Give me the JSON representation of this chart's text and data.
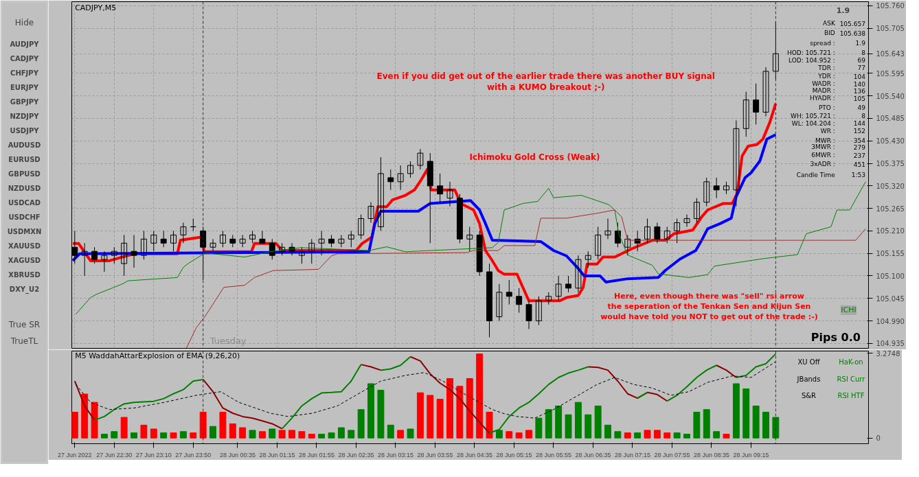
{
  "chart_data": [
    {
      "type": "candlestick",
      "title": "CADJPY,M5",
      "x": [
        "2022-06-27T21:50",
        "2022-06-27T22:00",
        "2022-06-27T22:10",
        "2022-06-27T22:20",
        "2022-06-27T22:30",
        "2022-06-27T22:40",
        "2022-06-27T22:50",
        "2022-06-27T23:00",
        "2022-06-27T23:10",
        "2022-06-27T23:20",
        "2022-06-27T23:30",
        "2022-06-27T23:40",
        "2022-06-27T23:50",
        "2022-06-28T00:00",
        "2022-06-28T00:10",
        "2022-06-28T00:20",
        "2022-06-28T00:30",
        "2022-06-28T00:40",
        "2022-06-28T00:50",
        "2022-06-28T01:00",
        "2022-06-28T01:10",
        "2022-06-28T01:20",
        "2022-06-28T01:30",
        "2022-06-28T01:40",
        "2022-06-28T01:50",
        "2022-06-28T02:00",
        "2022-06-28T02:10",
        "2022-06-28T02:20",
        "2022-06-28T02:30",
        "2022-06-28T02:40",
        "2022-06-28T02:50",
        "2022-06-28T03:00",
        "2022-06-28T03:10",
        "2022-06-28T03:20",
        "2022-06-28T03:30",
        "2022-06-28T03:40",
        "2022-06-28T03:50",
        "2022-06-28T04:00",
        "2022-06-28T04:10",
        "2022-06-28T04:20",
        "2022-06-28T04:30",
        "2022-06-28T04:40",
        "2022-06-28T04:50",
        "2022-06-28T05:00",
        "2022-06-28T05:10",
        "2022-06-28T05:20",
        "2022-06-28T05:30",
        "2022-06-28T05:40",
        "2022-06-28T05:50",
        "2022-06-28T06:00",
        "2022-06-28T06:10",
        "2022-06-28T06:20",
        "2022-06-28T06:30",
        "2022-06-28T06:40",
        "2022-06-28T06:50",
        "2022-06-28T07:00",
        "2022-06-28T07:10",
        "2022-06-28T07:20",
        "2022-06-28T07:30",
        "2022-06-28T07:40",
        "2022-06-28T07:50",
        "2022-06-28T08:00",
        "2022-06-28T08:10",
        "2022-06-28T08:20",
        "2022-06-28T08:30",
        "2022-06-28T08:40",
        "2022-06-28T08:50",
        "2022-06-28T09:00",
        "2022-06-28T09:10",
        "2022-06-28T09:20",
        "2022-06-28T09:30",
        "2022-06-28T09:40"
      ],
      "ohlc": [
        [
          105.17,
          105.21,
          105.13,
          105.15
        ],
        [
          105.15,
          105.18,
          105.1,
          105.16
        ],
        [
          105.16,
          105.17,
          105.13,
          105.14
        ],
        [
          105.14,
          105.16,
          105.11,
          105.15
        ],
        [
          105.15,
          105.17,
          105.13,
          105.16
        ],
        [
          105.13,
          105.2,
          105.1,
          105.18
        ],
        [
          105.16,
          105.2,
          105.12,
          105.15
        ],
        [
          105.15,
          105.21,
          105.14,
          105.19
        ],
        [
          105.18,
          105.21,
          105.16,
          105.2
        ],
        [
          105.19,
          105.21,
          105.17,
          105.18
        ],
        [
          105.18,
          105.21,
          105.16,
          105.2
        ],
        [
          105.2,
          105.23,
          105.18,
          105.22
        ],
        [
          105.22,
          105.24,
          105.21,
          105.22
        ],
        [
          105.21,
          105.22,
          105.09,
          105.17
        ],
        [
          105.17,
          105.19,
          105.16,
          105.18
        ],
        [
          105.18,
          105.21,
          105.17,
          105.2
        ],
        [
          105.19,
          105.2,
          105.17,
          105.18
        ],
        [
          105.18,
          105.2,
          105.17,
          105.19
        ],
        [
          105.19,
          105.21,
          105.18,
          105.2
        ],
        [
          105.19,
          105.21,
          105.18,
          105.18
        ],
        [
          105.18,
          105.19,
          105.14,
          105.15
        ],
        [
          105.16,
          105.18,
          105.15,
          105.17
        ],
        [
          105.17,
          105.18,
          105.15,
          105.16
        ],
        [
          105.15,
          105.17,
          105.13,
          105.16
        ],
        [
          105.16,
          105.19,
          105.13,
          105.18
        ],
        [
          105.18,
          105.21,
          105.15,
          105.19
        ],
        [
          105.19,
          105.2,
          105.17,
          105.18
        ],
        [
          105.18,
          105.2,
          105.17,
          105.19
        ],
        [
          105.19,
          105.21,
          105.17,
          105.2
        ],
        [
          105.2,
          105.25,
          105.19,
          105.24
        ],
        [
          105.24,
          105.28,
          105.23,
          105.27
        ],
        [
          105.22,
          105.39,
          105.21,
          105.35
        ],
        [
          105.34,
          105.36,
          105.31,
          105.33
        ],
        [
          105.33,
          105.37,
          105.31,
          105.35
        ],
        [
          105.35,
          105.38,
          105.34,
          105.37
        ],
        [
          105.37,
          105.41,
          105.36,
          105.4
        ],
        [
          105.38,
          105.4,
          105.18,
          105.32
        ],
        [
          105.32,
          105.35,
          105.28,
          105.3
        ],
        [
          105.29,
          105.33,
          105.27,
          105.31
        ],
        [
          105.29,
          105.3,
          105.18,
          105.19
        ],
        [
          105.19,
          105.22,
          105.16,
          105.2
        ],
        [
          105.2,
          105.21,
          105.1,
          105.11
        ],
        [
          105.11,
          105.13,
          104.95,
          104.99
        ],
        [
          105.0,
          105.08,
          104.99,
          105.06
        ],
        [
          105.06,
          105.09,
          105.03,
          105.05
        ],
        [
          105.05,
          105.07,
          105.01,
          105.03
        ],
        [
          105.03,
          105.04,
          104.97,
          104.99
        ],
        [
          104.99,
          105.05,
          104.98,
          105.04
        ],
        [
          105.04,
          105.06,
          105.03,
          105.05
        ],
        [
          105.05,
          105.1,
          105.04,
          105.08
        ],
        [
          105.08,
          105.1,
          105.06,
          105.07
        ],
        [
          105.07,
          105.15,
          105.06,
          105.14
        ],
        [
          105.14,
          105.16,
          105.12,
          105.15
        ],
        [
          105.15,
          105.22,
          105.14,
          105.2
        ],
        [
          105.2,
          105.24,
          105.19,
          105.21
        ],
        [
          105.21,
          105.23,
          105.17,
          105.18
        ],
        [
          105.17,
          105.2,
          105.15,
          105.19
        ],
        [
          105.19,
          105.21,
          105.16,
          105.18
        ],
        [
          105.19,
          105.24,
          105.18,
          105.22
        ],
        [
          105.22,
          105.23,
          105.18,
          105.19
        ],
        [
          105.19,
          105.22,
          105.18,
          105.21
        ],
        [
          105.21,
          105.24,
          105.18,
          105.23
        ],
        [
          105.23,
          105.25,
          105.22,
          105.24
        ],
        [
          105.24,
          105.29,
          105.23,
          105.28
        ],
        [
          105.28,
          105.34,
          105.27,
          105.33
        ],
        [
          105.32,
          105.34,
          105.29,
          105.31
        ],
        [
          105.31,
          105.33,
          105.3,
          105.32
        ],
        [
          105.31,
          105.48,
          105.27,
          105.46
        ],
        [
          105.46,
          105.55,
          105.44,
          105.53
        ],
        [
          105.53,
          105.57,
          105.47,
          105.5
        ],
        [
          105.5,
          105.61,
          105.49,
          105.6
        ],
        [
          105.6,
          105.721,
          105.58,
          105.643
        ]
      ],
      "series": [
        {
          "type": "line",
          "color": "#ff0000",
          "x": [
            "2022-06-27T21:48",
            "2022-06-27T21:54",
            "2022-06-27T22:06",
            "2022-06-27T22:25",
            "2022-06-27T22:50",
            "2022-06-27T23:34",
            "2022-06-27T23:37",
            "2022-06-27T23:59",
            "2022-06-28T00:01",
            "2022-06-28T00:49",
            "2022-06-28T00:52",
            "2022-06-28T01:14",
            "2022-06-28T01:20",
            "2022-06-28T02:35",
            "2022-06-28T02:41",
            "2022-06-28T02:51",
            "2022-06-28T02:57",
            "2022-06-28T03:06",
            "2022-06-28T03:12",
            "2022-06-28T03:25",
            "2022-06-28T03:34",
            "2022-06-28T03:41",
            "2022-06-28T03:47",
            "2022-06-28T03:51",
            "2022-06-28T04:15",
            "2022-06-28T04:21",
            "2022-06-28T04:34",
            "2022-06-28T04:40",
            "2022-06-28T04:46",
            "2022-06-28T04:53",
            "2022-06-28T04:59",
            "2022-06-28T05:05",
            "2022-06-28T05:18",
            "2022-06-28T05:30",
            "2022-06-28T06:01",
            "2022-06-28T06:08",
            "2022-06-28T06:20",
            "2022-06-28T06:25",
            "2022-06-28T06:29",
            "2022-06-28T06:39",
            "2022-06-28T06:45",
            "2022-06-28T06:57",
            "2022-06-28T07:13",
            "2022-06-28T07:23",
            "2022-06-28T07:35",
            "2022-06-28T07:48",
            "2022-06-28T07:57",
            "2022-06-28T08:16",
            "2022-06-28T08:25",
            "2022-06-28T08:31",
            "2022-06-28T08:47",
            "2022-06-28T08:56",
            "2022-06-28T09:01",
            "2022-06-28T09:06",
            "2022-06-28T09:12",
            "2022-06-28T09:21",
            "2022-06-28T09:27",
            "2022-06-28T09:34",
            "2022-06-28T09:40"
          ],
          "values": [
            105.179,
            105.179,
            105.137,
            105.137,
            105.154,
            105.154,
            105.187,
            105.195,
            105.159,
            105.159,
            105.179,
            105.179,
            105.162,
            105.162,
            105.179,
            105.195,
            105.269,
            105.269,
            105.286,
            105.297,
            105.31,
            105.335,
            105.36,
            105.31,
            105.31,
            105.277,
            105.261,
            105.228,
            105.162,
            105.137,
            105.113,
            105.104,
            105.104,
            105.039,
            105.039,
            105.047,
            105.052,
            105.072,
            105.129,
            105.129,
            105.146,
            105.146,
            105.165,
            105.175,
            105.187,
            105.187,
            105.203,
            105.212,
            105.244,
            105.261,
            105.277,
            105.277,
            105.302,
            105.393,
            105.417,
            105.421,
            105.434,
            105.475,
            105.521
          ]
        },
        {
          "type": "line",
          "color": "#0000ff",
          "x": [
            "2022-06-27T21:48",
            "2022-06-27T21:55",
            "2022-06-27T23:53",
            "2022-06-28T02:48",
            "2022-06-28T02:54",
            "2022-06-28T03:00",
            "2022-06-28T03:38",
            "2022-06-28T03:50",
            "2022-06-28T04:31",
            "2022-06-28T04:40",
            "2022-06-28T04:46",
            "2022-06-28T04:53",
            "2022-06-28T05:42",
            "2022-06-28T05:55",
            "2022-06-28T06:08",
            "2022-06-28T06:20",
            "2022-06-28T06:26",
            "2022-06-28T06:42",
            "2022-06-28T06:48",
            "2022-06-28T07:10",
            "2022-06-28T07:41",
            "2022-06-28T07:48",
            "2022-06-28T08:03",
            "2022-06-28T08:19",
            "2022-06-28T08:25",
            "2022-06-28T08:31",
            "2022-06-28T08:44",
            "2022-06-28T08:55",
            "2022-06-28T09:00",
            "2022-06-28T09:09",
            "2022-06-28T09:15",
            "2022-06-28T09:24",
            "2022-06-28T09:31",
            "2022-06-28T09:40"
          ],
          "values": [
            105.137,
            105.154,
            105.156,
            105.159,
            105.228,
            105.258,
            105.258,
            105.277,
            105.284,
            105.261,
            105.228,
            105.187,
            105.184,
            105.162,
            105.149,
            105.118,
            105.1,
            105.1,
            105.085,
            105.093,
            105.096,
            105.113,
            105.141,
            105.162,
            105.187,
            105.215,
            105.228,
            105.241,
            105.294,
            105.34,
            105.352,
            105.381,
            105.434,
            105.445
          ]
        },
        {
          "type": "line",
          "color": "#008000",
          "x": [
            "2022-06-27T21:51",
            "2022-06-27T22:06",
            "2022-06-27T22:12",
            "2022-06-27T22:38",
            "2022-06-27T22:44",
            "2022-06-27T23:34",
            "2022-06-27T23:40",
            "2022-06-27T23:46",
            "2022-06-28T00:02",
            "2022-06-28T00:42",
            "2022-06-28T01:08",
            "2022-06-28T01:39",
            "2022-06-28T02:48",
            "2022-06-28T03:06",
            "2022-06-28T03:25",
            "2022-06-28T04:53",
            "2022-06-28T04:59",
            "2022-06-28T05:05",
            "2022-06-28T05:24",
            "2022-06-28T05:39",
            "2022-06-28T05:50",
            "2022-06-28T05:55",
            "2022-06-28T06:23",
            "2022-06-28T06:51",
            "2022-06-28T06:57",
            "2022-06-28T07:01",
            "2022-06-28T07:10",
            "2022-06-28T07:35",
            "2022-06-28T07:41",
            "2022-06-28T08:12",
            "2022-06-28T08:31",
            "2022-06-28T08:38",
            "2022-06-28T09:27",
            "2022-06-28T10:02",
            "2022-06-28T10:11",
            "2022-06-28T10:36",
            "2022-06-28T10:42",
            "2022-06-28T10:55",
            "2022-06-28T11:11"
          ],
          "values": [
            105.006,
            105.047,
            105.055,
            105.08,
            105.088,
            105.096,
            105.121,
            105.132,
            105.156,
            105.146,
            105.159,
            105.169,
            105.162,
            105.171,
            105.159,
            105.169,
            105.182,
            105.261,
            105.277,
            105.282,
            105.314,
            105.291,
            105.297,
            105.274,
            105.261,
            105.203,
            105.151,
            105.126,
            105.105,
            105.096,
            105.103,
            105.124,
            105.142,
            105.152,
            105.203,
            105.22,
            105.261,
            105.261,
            105.33
          ]
        },
        {
          "type": "line",
          "color": "#a52a2a",
          "x": [
            "2022-06-27T23:43",
            "2022-06-27T23:53",
            "2022-06-28T00:02",
            "2022-06-28T00:21",
            "2022-06-28T00:42",
            "2022-06-28T00:52",
            "2022-06-28T01:11",
            "2022-06-28T01:57",
            "2022-06-28T02:10",
            "2022-06-28T02:16",
            "2022-06-28T04:27",
            "2022-06-28T04:34",
            "2022-06-28T04:59",
            "2022-06-28T05:05",
            "2022-06-28T05:36",
            "2022-06-28T05:42",
            "2022-06-28T06:08",
            "2022-06-28T06:39",
            "2022-06-28T06:57",
            "2022-06-28T07:04",
            "2022-06-28T07:10",
            "2022-06-28T11:01",
            "2022-06-28T11:11"
          ],
          "values": [
            104.923,
            104.973,
            105.001,
            105.072,
            105.077,
            105.096,
            105.113,
            105.116,
            105.149,
            105.154,
            105.157,
            105.162,
            105.162,
            105.174,
            105.174,
            105.241,
            105.241,
            105.253,
            105.261,
            105.244,
            105.187,
            105.187,
            105.215
          ]
        }
      ],
      "xlim": [
        "2022-06-27T21:47",
        "2022-06-28T11:14"
      ],
      "ylim": [
        104.923,
        105.77
      ],
      "xticks": [
        {
          "value": "2022-06-27T21:50",
          "label": null
        },
        {
          "value": "2022-06-27T22:30",
          "label": null
        },
        {
          "value": "2022-06-27T23:10",
          "label": null
        },
        {
          "value": "2022-06-27T23:50",
          "label": null
        },
        {
          "value": "2022-06-28T00:35",
          "label": null
        },
        {
          "value": "2022-06-28T01:15",
          "label": null
        },
        {
          "value": "2022-06-28T01:55",
          "label": null
        },
        {
          "value": "2022-06-28T02:35",
          "label": null
        },
        {
          "value": "2022-06-28T03:15",
          "label": null
        },
        {
          "value": "2022-06-28T03:55",
          "label": null
        },
        {
          "value": "2022-06-28T04:35",
          "label": null
        },
        {
          "value": "2022-06-28T05:15",
          "label": null
        },
        {
          "value": "2022-06-28T05:55",
          "label": null
        },
        {
          "value": "2022-06-28T06:35",
          "label": null
        },
        {
          "value": "2022-06-28T07:15",
          "label": null
        },
        {
          "value": "2022-06-28T07:55",
          "label": null
        },
        {
          "value": "2022-06-28T08:35",
          "label": null
        },
        {
          "value": "2022-06-28T09:15",
          "label": null
        }
      ],
      "yticks": [
        {
          "value": 104.935,
          "label": "104.935"
        },
        {
          "value": 104.99,
          "label": "104.990"
        },
        {
          "value": 105.045,
          "label": "105.045"
        },
        {
          "value": 105.1,
          "label": "105.100"
        },
        {
          "value": 105.155,
          "label": "105.155"
        },
        {
          "value": 105.21,
          "label": "105.210"
        },
        {
          "value": 105.265,
          "label": "105.265"
        },
        {
          "value": 105.32,
          "label": "105.320"
        },
        {
          "value": 105.375,
          "label": "105.375"
        },
        {
          "value": 105.43,
          "label": "105.430"
        },
        {
          "value": 105.485,
          "label": "105.485"
        },
        {
          "value": 105.54,
          "label": "105.540"
        },
        {
          "value": 105.595,
          "label": "105.595"
        },
        {
          "value": 105.643,
          "label": "105.643"
        },
        {
          "value": 105.705,
          "label": "105.705"
        },
        {
          "value": 105.76,
          "label": "105.760"
        }
      ],
      "tick_labels": "y",
      "grid": true,
      "ref_lines": [
        {
          "axis": "x",
          "value": "2022-06-28T00:00",
          "label": "Tuesday",
          "line_style": "dashed"
        },
        {
          "axis": "x",
          "value": "2022-06-28T09:40",
          "line_style": "dashed"
        }
      ],
      "annotations": [
        "Even if you did get out of the earlier trade there was another BUY signal\nwith a KUMO breakout ;-)",
        "Ichimoku Gold Cross (Weak)",
        "Here, even though there was \"sell\" rsi arrow\nthe seperation of the Tenkan Sen and Kijun Sen\nwould have told you NOT to get out of the trade :-)",
        "Pips 0.0",
        "ICHI",
        "1.9",
        "ASK",
        "105.657",
        "BID",
        "105.638",
        "spread :",
        "1.9",
        "HOD: 105.721 :",
        "8",
        "LOD: 104.952 :",
        "69",
        "TDR :",
        "77",
        "YDR :",
        "104",
        "WADR :",
        "140",
        "MADR :",
        "136",
        "HYADR :",
        "105",
        "PTO :",
        "49",
        "WH: 105.721 :",
        "8",
        "WL: 104.204 :",
        "144",
        "WR :",
        "152",
        "MWR :",
        "354",
        "3MWR :",
        "279",
        "6MWR :",
        "237",
        "3xADR :",
        "451",
        "Candle Time",
        "1:53"
      ]
    },
    {
      "type": "bar",
      "title": "M5 WaddahAttarExplosion of EMA (9,26,20)",
      "x": [
        "2022-06-27T21:50",
        "2022-06-27T22:00",
        "2022-06-27T22:10",
        "2022-06-27T22:20",
        "2022-06-27T22:30",
        "2022-06-27T22:40",
        "2022-06-27T22:50",
        "2022-06-27T23:00",
        "2022-06-27T23:10",
        "2022-06-27T23:20",
        "2022-06-27T23:30",
        "2022-06-27T23:40",
        "2022-06-27T23:50",
        "2022-06-28T00:00",
        "2022-06-28T00:10",
        "2022-06-28T00:20",
        "2022-06-28T00:30",
        "2022-06-28T00:40",
        "2022-06-28T00:50",
        "2022-06-28T01:00",
        "2022-06-28T01:10",
        "2022-06-28T01:20",
        "2022-06-28T01:30",
        "2022-06-28T01:40",
        "2022-06-28T01:50",
        "2022-06-28T02:00",
        "2022-06-28T02:10",
        "2022-06-28T02:20",
        "2022-06-28T02:30",
        "2022-06-28T02:40",
        "2022-06-28T02:50",
        "2022-06-28T03:00",
        "2022-06-28T03:10",
        "2022-06-28T03:20",
        "2022-06-28T03:30",
        "2022-06-28T03:40",
        "2022-06-28T03:50",
        "2022-06-28T04:00",
        "2022-06-28T04:10",
        "2022-06-28T04:20",
        "2022-06-28T04:30",
        "2022-06-28T04:40",
        "2022-06-28T04:50",
        "2022-06-28T05:00",
        "2022-06-28T05:10",
        "2022-06-28T05:20",
        "2022-06-28T05:30",
        "2022-06-28T05:40",
        "2022-06-28T05:50",
        "2022-06-28T06:00",
        "2022-06-28T06:10",
        "2022-06-28T06:20",
        "2022-06-28T06:30",
        "2022-06-28T06:40",
        "2022-06-28T06:50",
        "2022-06-28T07:00",
        "2022-06-28T07:10",
        "2022-06-28T07:20",
        "2022-06-28T07:30",
        "2022-06-28T07:40",
        "2022-06-28T07:50",
        "2022-06-28T08:00",
        "2022-06-28T08:10",
        "2022-06-28T08:20",
        "2022-06-28T08:30",
        "2022-06-28T08:40",
        "2022-06-28T08:50",
        "2022-06-28T09:00",
        "2022-06-28T09:10",
        "2022-06-28T09:20",
        "2022-06-28T09:30",
        "2022-06-28T09:40"
      ],
      "series": [
        {
          "type": "bar",
          "values": [
            1.0,
            1.7,
            1.38,
            0.15,
            0.25,
            0.8,
            0.2,
            0.5,
            0.35,
            0.2,
            0.2,
            0.25,
            0.2,
            1.0,
            0.45,
            1.0,
            0.55,
            0.4,
            0.3,
            0.25,
            0.35,
            0.3,
            0.3,
            0.25,
            0.15,
            0.15,
            0.2,
            0.4,
            0.3,
            1.1,
            2.1,
            1.85,
            0.5,
            0.3,
            0.35,
            1.75,
            1.65,
            1.5,
            2.3,
            2.0,
            2.3,
            3.25,
            1.0,
            0.3,
            0.25,
            0.2,
            0.3,
            0.77,
            1.1,
            1.24,
            0.9,
            1.38,
            0.9,
            1.24,
            0.5,
            0.25,
            0.2,
            0.2,
            0.3,
            0.3,
            0.2,
            0.2,
            0.15,
            1.0,
            1.1,
            0.25,
            0.15,
            2.1,
            1.9,
            1.24,
            1.0,
            0.8
          ],
          "colors": [
            "#ff0000",
            "#ff0000",
            "#ff0000",
            "#008000",
            "#008000",
            "#ff0000",
            "#008000",
            "#ff0000",
            "#ff0000",
            "#008000",
            "#ff0000",
            "#008000",
            "#ff0000",
            "#ff0000",
            "#008000",
            "#ff0000",
            "#ff0000",
            "#ff0000",
            "#008000",
            "#ff0000",
            "#008000",
            "#ff0000",
            "#ff0000",
            "#ff0000",
            "#ff0000",
            "#008000",
            "#008000",
            "#008000",
            "#008000",
            "#008000",
            "#008000",
            "#008000",
            "#008000",
            "#ff0000",
            "#008000",
            "#ff0000",
            "#ff0000",
            "#ff0000",
            "#ff0000",
            "#ff0000",
            "#ff0000",
            "#ff0000",
            "#ff0000",
            "#008000",
            "#ff0000",
            "#ff0000",
            "#ff0000",
            "#008000",
            "#008000",
            "#008000",
            "#008000",
            "#008000",
            "#008000",
            "#008000",
            "#008000",
            "#008000",
            "#ff0000",
            "#008000",
            "#ff0000",
            "#ff0000",
            "#ff0000",
            "#008000",
            "#008000",
            "#008000",
            "#008000",
            "#008000",
            "#ff0000",
            "#008000",
            "#008000",
            "#008000",
            "#008000",
            "#008000"
          ]
        },
        {
          "type": "line",
          "color": "#8b0000",
          "values": [
            2.2,
            1.24,
            0.69,
            null,
            null,
            null,
            null,
            null,
            null,
            null,
            null,
            null,
            null,
            2.26,
            1.79,
            1.16,
            0.96,
            0.83,
            0.77,
            0.66,
            0.55,
            0.36,
            null,
            null,
            null,
            null,
            null,
            null,
            null,
            2.84,
            2.75,
            2.62,
            null,
            null,
            3.14,
            2.98,
            2.48,
            2.12,
            1.87,
            1.52,
            1.05,
            0.61,
            0.19,
            null,
            null,
            null,
            null,
            null,
            null,
            null,
            null,
            null,
            2.75,
            2.73,
            2.62,
            2.2,
            1.71,
            1.54,
            1.76,
            1.68,
            1.43,
            null,
            null,
            null,
            null,
            2.81,
            2.62,
            2.34,
            null,
            null,
            null,
            null
          ]
        },
        {
          "type": "line",
          "color": "#008000",
          "values": [
            null,
            null,
            0.69,
            0.83,
            1.1,
            1.32,
            1.38,
            1.4,
            1.42,
            1.52,
            1.71,
            1.87,
            2.2,
            2.26,
            null,
            null,
            null,
            null,
            null,
            null,
            null,
            0.36,
            0.77,
            1.24,
            1.52,
            1.74,
            1.76,
            1.79,
            2.2,
            2.84,
            null,
            2.62,
            2.67,
            2.81,
            3.14,
            null,
            null,
            null,
            null,
            null,
            null,
            null,
            0.19,
            0.33,
            0.83,
            1.16,
            1.38,
            1.71,
            2.07,
            2.34,
            2.51,
            2.62,
            2.75,
            null,
            null,
            null,
            null,
            1.54,
            1.76,
            null,
            1.43,
            1.65,
            1.98,
            2.34,
            2.62,
            2.81,
            null,
            2.34,
            2.42,
            2.75,
            2.87,
            3.25
          ]
        },
        {
          "type": "line",
          "color": "#000000",
          "line_style": "dashed",
          "x": [
            "2022-06-27T21:51",
            "2022-06-27T22:06",
            "2022-06-27T22:25",
            "2022-06-27T22:50",
            "2022-06-27T23:21",
            "2022-06-27T23:53",
            "2022-06-28T00:18",
            "2022-06-28T00:36",
            "2022-06-28T01:08",
            "2022-06-28T01:26",
            "2022-06-28T01:51",
            "2022-06-28T02:16",
            "2022-06-28T02:41",
            "2022-06-28T03:00",
            "2022-06-28T03:25",
            "2022-06-28T03:44",
            "2022-06-28T04:03",
            "2022-06-28T04:27",
            "2022-06-28T04:53",
            "2022-06-28T05:05",
            "2022-06-28T05:18",
            "2022-06-28T05:36",
            "2022-06-28T05:55",
            "2022-06-28T06:14",
            "2022-06-28T06:39",
            "2022-06-28T06:57",
            "2022-06-28T07:16",
            "2022-06-28T07:35",
            "2022-06-28T07:54",
            "2022-06-28T08:12",
            "2022-06-28T08:31",
            "2022-06-28T08:56",
            "2022-06-28T09:15",
            "2022-06-28T09:40"
          ],
          "values": [
            2.07,
            1.38,
            1.1,
            1.16,
            1.38,
            1.65,
            1.79,
            1.38,
            0.96,
            0.83,
            0.96,
            1.24,
            1.79,
            2.2,
            2.42,
            2.53,
            2.2,
            1.65,
            1.1,
            0.94,
            0.83,
            0.77,
            1.1,
            1.52,
            2.07,
            2.34,
            2.07,
            1.93,
            1.65,
            1.79,
            2.15,
            2.4,
            2.34,
            2.95
          ]
        }
      ],
      "xlim": [
        "2022-06-27T21:47",
        "2022-06-28T11:14"
      ],
      "ylim": [
        -0.22,
        3.36
      ],
      "xticks": [
        {
          "value": "2022-06-27T21:50",
          "label": "27 Jun 2022"
        },
        {
          "value": "2022-06-27T22:30",
          "label": "27 Jun 22:30"
        },
        {
          "value": "2022-06-27T23:10",
          "label": "27 Jun 23:10"
        },
        {
          "value": "2022-06-27T23:50",
          "label": "27 Jun 23:50"
        },
        {
          "value": "2022-06-28T00:35",
          "label": "28 Jun 00:35"
        },
        {
          "value": "2022-06-28T01:15",
          "label": "28 Jun 01:15"
        },
        {
          "value": "2022-06-28T01:55",
          "label": "28 Jun 01:55"
        },
        {
          "value": "2022-06-28T02:35",
          "label": "28 Jun 02:35"
        },
        {
          "value": "2022-06-28T03:15",
          "label": "28 Jun 03:15"
        },
        {
          "value": "2022-06-28T03:55",
          "label": "28 Jun 03:55"
        },
        {
          "value": "2022-06-28T04:35",
          "label": "28 Jun 04:35"
        },
        {
          "value": "2022-06-28T05:15",
          "label": "28 Jun 05:15"
        },
        {
          "value": "2022-06-28T05:55",
          "label": "28 Jun 05:55"
        },
        {
          "value": "2022-06-28T06:35",
          "label": "28 Jun 06:35"
        },
        {
          "value": "2022-06-28T07:15",
          "label": "28 Jun 07:15"
        },
        {
          "value": "2022-06-28T07:55",
          "label": "28 Jun 07:55"
        },
        {
          "value": "2022-06-28T08:35",
          "label": "28 Jun 08:35"
        },
        {
          "value": "2022-06-28T09:15",
          "label": "28 Jun 09:15"
        }
      ],
      "yticks": [
        0,
        3.2748
      ],
      "ref_lines": [
        {
          "axis": "x",
          "value": "2022-06-28T00:00",
          "line_style": "dashed"
        },
        {
          "axis": "x",
          "value": "2022-06-28T09:40",
          "line_style": "dashed"
        }
      ],
      "annotations": [
        "XU Off",
        "HaK-on",
        "JBands",
        "RSI Curr",
        "S&R",
        "RSI HTF"
      ]
    },
    {
      "type": "other",
      "annotations": [
        "Hide",
        "AUDJPY",
        "CADJPY",
        "CHFJPY",
        "EURJPY",
        "GBPJPY",
        "NZDJPY",
        "USDJPY",
        "AUDUSD",
        "EURUSD",
        "GBPUSD",
        "NZDUSD",
        "USDCAD",
        "USDCHF",
        "USDMXN",
        "XAUUSD",
        "XAGUSD",
        "XBRUSD",
        "DXY_U2",
        "True SR",
        "TrueTL"
      ]
    }
  ]
}
